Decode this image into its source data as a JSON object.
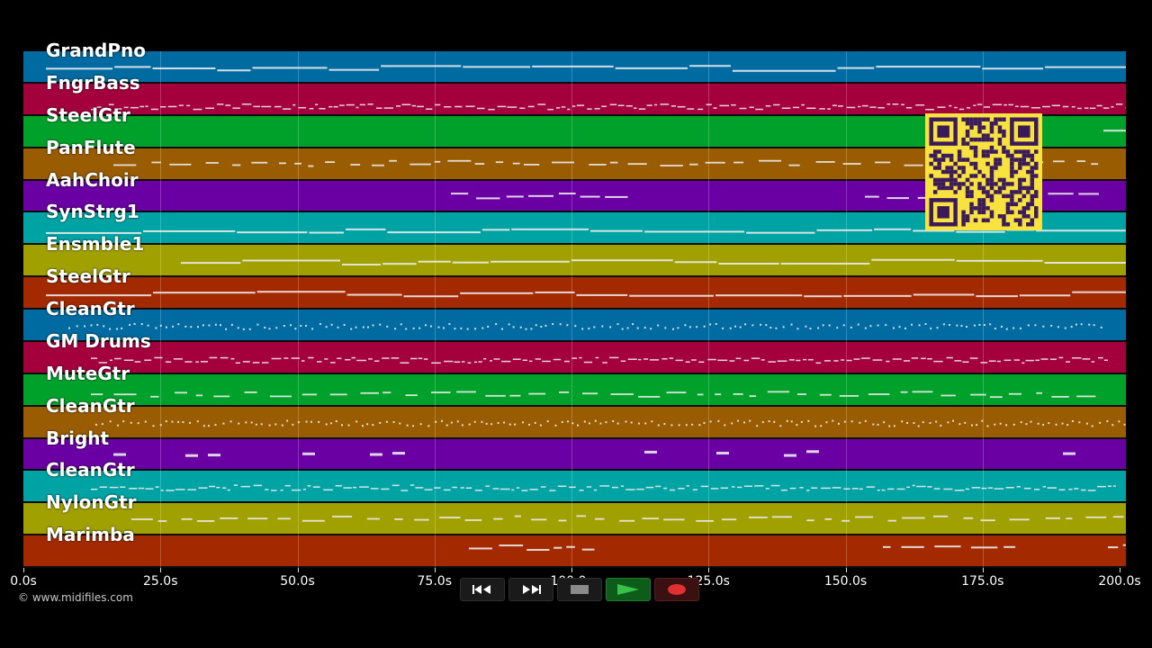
{
  "tracks": [
    {
      "label": "GrandPno",
      "color": "#006ba0"
    },
    {
      "label": "FngrBass",
      "color": "#a3003c"
    },
    {
      "label": "SteelGtr",
      "color": "#00a12a"
    },
    {
      "label": "PanFlute",
      "color": "#9a5c00"
    },
    {
      "label": "AahChoir",
      "color": "#6a00a3"
    },
    {
      "label": "SynStrg1",
      "color": "#00a3a3"
    },
    {
      "label": "Ensmble1",
      "color": "#a0a000"
    },
    {
      "label": "SteelGtr",
      "color": "#a32a00"
    },
    {
      "label": "CleanGtr",
      "color": "#006ba0"
    },
    {
      "label": "GM Drums",
      "color": "#a3003c"
    },
    {
      "label": "MuteGtr",
      "color": "#00a12a"
    },
    {
      "label": "CleanGtr",
      "color": "#9a5c00"
    },
    {
      "label": "Bright",
      "color": "#6a00a3"
    },
    {
      "label": "CleanGtr",
      "color": "#00a3a3"
    },
    {
      "label": "NylonGtr",
      "color": "#a0a000"
    },
    {
      "label": "Marimba",
      "color": "#a32a00"
    }
  ],
  "timeline": {
    "ticks": [
      "0.0s",
      "25.0s",
      "50.0s",
      "75.0s",
      "100.0s",
      "125.0s",
      "150.0s",
      "175.0s",
      "200.0s"
    ],
    "max_seconds": 200
  },
  "footer": {
    "copyright": "© www.midifiles.com"
  },
  "transport": {
    "buttons": [
      {
        "name": "rewind-button",
        "icon": "rewind-icon"
      },
      {
        "name": "fast-forward-button",
        "icon": "fast-forward-icon"
      },
      {
        "name": "stop-button",
        "icon": "stop-icon"
      },
      {
        "name": "play-button",
        "icon": "play-icon"
      },
      {
        "name": "record-button",
        "icon": "record-icon"
      }
    ]
  }
}
